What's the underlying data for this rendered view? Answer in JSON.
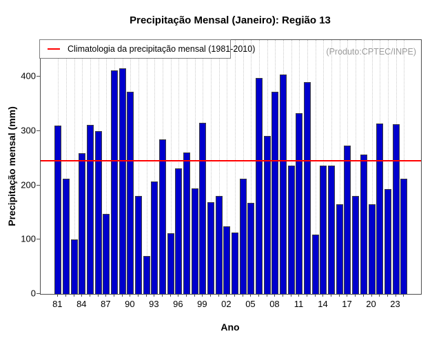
{
  "title": "Precipitação Mensal (Janeiro): Região 13",
  "legend": {
    "label": "Climatologia da precipitação mensal (1981-2010)",
    "line_color": "#ff0000"
  },
  "watermark": "(Produto:CPTEC/INPE)",
  "chart_data": {
    "type": "bar",
    "title": "Precipitação Mensal (Janeiro): Região 13",
    "xlabel": "Ano",
    "ylabel": "Precipitação mensal (mm)",
    "categories": [
      "81",
      "82",
      "83",
      "84",
      "85",
      "86",
      "87",
      "88",
      "89",
      "90",
      "91",
      "92",
      "93",
      "94",
      "95",
      "96",
      "97",
      "98",
      "99",
      "00",
      "01",
      "02",
      "03",
      "04",
      "05",
      "06",
      "07",
      "08",
      "09",
      "10",
      "11",
      "12",
      "13",
      "14",
      "15",
      "16",
      "17",
      "18",
      "19",
      "20",
      "21",
      "22",
      "23",
      "24"
    ],
    "values": [
      310,
      212,
      100,
      259,
      311,
      300,
      147,
      412,
      416,
      373,
      181,
      70,
      207,
      285,
      112,
      232,
      261,
      194,
      315,
      169,
      181,
      125,
      113,
      213,
      168,
      398,
      291,
      373,
      404,
      237,
      333,
      390,
      109,
      236,
      236,
      165,
      273,
      181,
      257,
      165,
      314,
      193,
      313,
      213
    ],
    "x_tick_label_every": 3,
    "x_tick_labels_shown": [
      "81",
      "84",
      "87",
      "90",
      "93",
      "96",
      "99",
      "02",
      "05",
      "08",
      "11",
      "14",
      "17",
      "20",
      "23"
    ],
    "y_ticks": [
      0,
      100,
      200,
      300,
      400
    ],
    "ylim": [
      0,
      468
    ],
    "climatology_value": 245,
    "bar_color": "#0000cd",
    "bar_border_color": "#3d3d3d",
    "climatology_line_color": "#ff0000",
    "grid": "vertical-dotted",
    "legend_position": "top-left"
  }
}
